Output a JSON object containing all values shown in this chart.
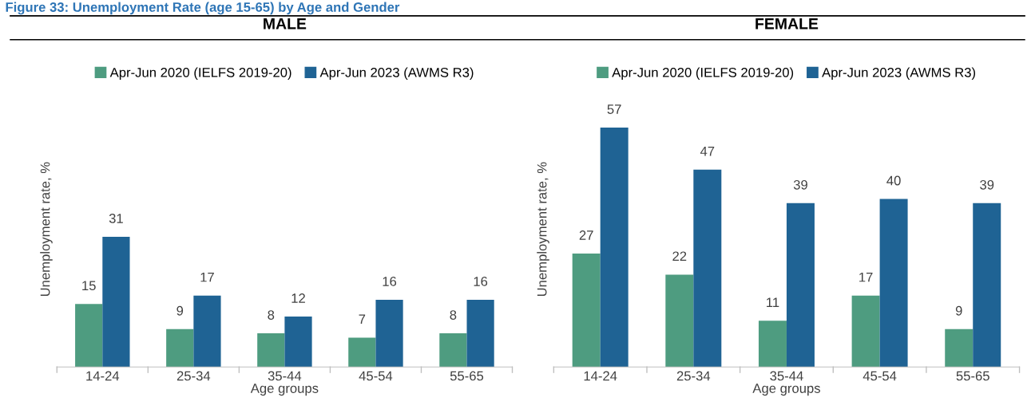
{
  "chart_data": [
    {
      "type": "bar",
      "title": "MALE",
      "annotations": [
        "Figure 33: Unemployment Rate (age 15-65) by Age and Gender"
      ],
      "xlabel": "Age groups",
      "ylabel": "Unemployment rate, %",
      "categories": [
        "14-24",
        "25-34",
        "35-44",
        "45-54",
        "55-65"
      ],
      "data_labels": true,
      "legend": "top",
      "grid": false,
      "series": [
        {
          "name": "Apr-Jun 2020 (IELFS 2019-20)",
          "color": "#4e9c80",
          "values": [
            15,
            9,
            8,
            7,
            8
          ]
        },
        {
          "name": "Apr-Jun 2023 (AWMS R3)",
          "color": "#1f6394",
          "values": [
            31,
            17,
            12,
            16,
            16
          ]
        }
      ]
    },
    {
      "type": "bar",
      "title": "FEMALE",
      "xlabel": "Age groups",
      "ylabel": "Unemployment rate, %",
      "categories": [
        "14-24",
        "25-34",
        "35-44",
        "45-54",
        "55-65"
      ],
      "data_labels": true,
      "legend": "top",
      "grid": false,
      "series": [
        {
          "name": "Apr-Jun 2020 (IELFS 2019-20)",
          "color": "#4e9c80",
          "values": [
            27,
            22,
            11,
            17,
            9
          ]
        },
        {
          "name": "Apr-Jun 2023 (AWMS R3)",
          "color": "#1f6394",
          "values": [
            57,
            47,
            39,
            40,
            39
          ]
        }
      ]
    }
  ]
}
